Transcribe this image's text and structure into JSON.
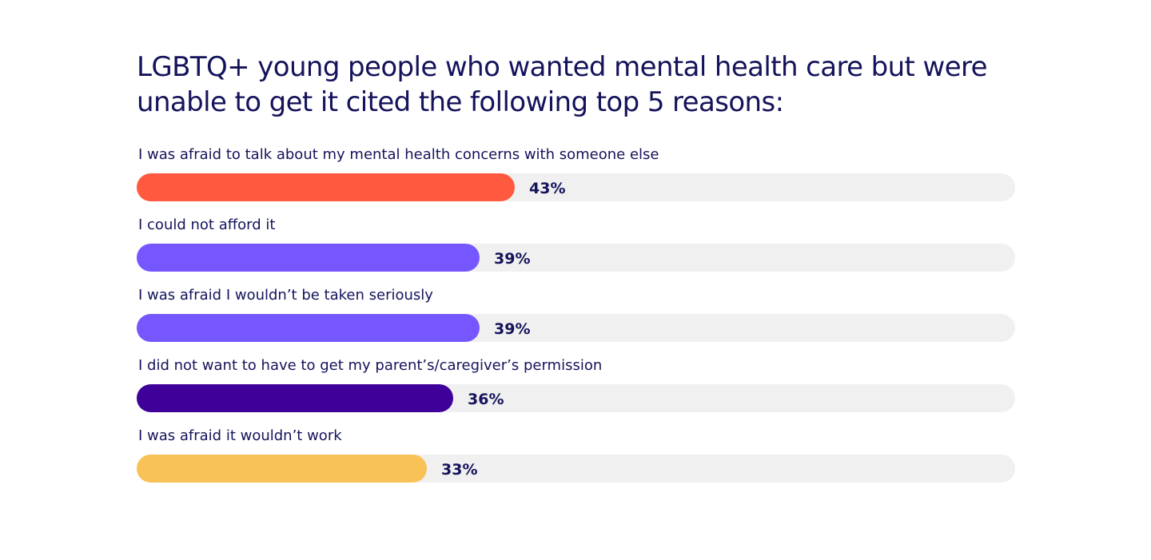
{
  "chart_data": {
    "type": "bar",
    "orientation": "horizontal",
    "title": "LGBTQ+ young people who wanted mental health care but were unable to get it cited the following top 5 reasons:",
    "categories": [
      "I was afraid to talk about my mental health concerns with someone else",
      "I could not afford it",
      "I was afraid I wouldn’t be taken seriously",
      "I did not want to have to get my parent’s/caregiver’s permission",
      "I was afraid it wouldn’t work"
    ],
    "values": [
      43,
      39,
      39,
      36,
      33
    ],
    "value_labels": [
      "43%",
      "39%",
      "39%",
      "36%",
      "33%"
    ],
    "bar_colors": [
      "#ff5a40",
      "#7657ff",
      "#7657ff",
      "#3f0099",
      "#f8c257"
    ],
    "track_color": "#f0f0f0",
    "xlim": [
      0,
      100
    ],
    "grid": false,
    "legend": "none"
  }
}
